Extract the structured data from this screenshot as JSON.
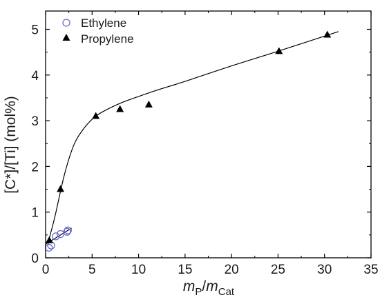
{
  "chart_data": {
    "type": "scatter",
    "xlabel": {
      "main": "m",
      "sub1": "P",
      "sep": "/",
      "main2": "m",
      "sub2": "Cat"
    },
    "ylabel": "[C*]/[Ti] (mol%)",
    "xlim": [
      0,
      35
    ],
    "ylim": [
      0,
      5.4
    ],
    "xticks": [
      0,
      5,
      10,
      15,
      20,
      25,
      30,
      35
    ],
    "yticks": [
      0,
      1,
      2,
      3,
      4,
      5
    ],
    "grid": false,
    "legend_position": "top-left",
    "series": [
      {
        "name": "Ethylene",
        "marker": "open-circle",
        "color": "#6a6ad0",
        "x": [
          0.35,
          0.6,
          1.1,
          1.6,
          2.3,
          2.4
        ],
        "y": [
          0.22,
          0.27,
          0.47,
          0.52,
          0.57,
          0.6
        ],
        "fit_line": {
          "x": [
            0,
            2.8
          ],
          "y": [
            0.3,
            0.65
          ]
        }
      },
      {
        "name": "Propylene",
        "marker": "filled-triangle",
        "color": "#000000",
        "x": [
          0.4,
          1.6,
          5.4,
          8.0,
          11.1,
          25.1,
          30.3
        ],
        "y": [
          0.38,
          1.5,
          3.1,
          3.25,
          3.35,
          4.52,
          4.88
        ],
        "fit_line": {
          "x": [
            0.3,
            1.0,
            2.0,
            3.0,
            4.0,
            5.0,
            6.0,
            8.0,
            10.0,
            12.0,
            15.0,
            20.0,
            25.0,
            31.5
          ],
          "y": [
            0.36,
            0.9,
            1.8,
            2.45,
            2.8,
            3.03,
            3.18,
            3.38,
            3.53,
            3.67,
            3.86,
            4.2,
            4.52,
            4.95
          ]
        }
      }
    ]
  }
}
